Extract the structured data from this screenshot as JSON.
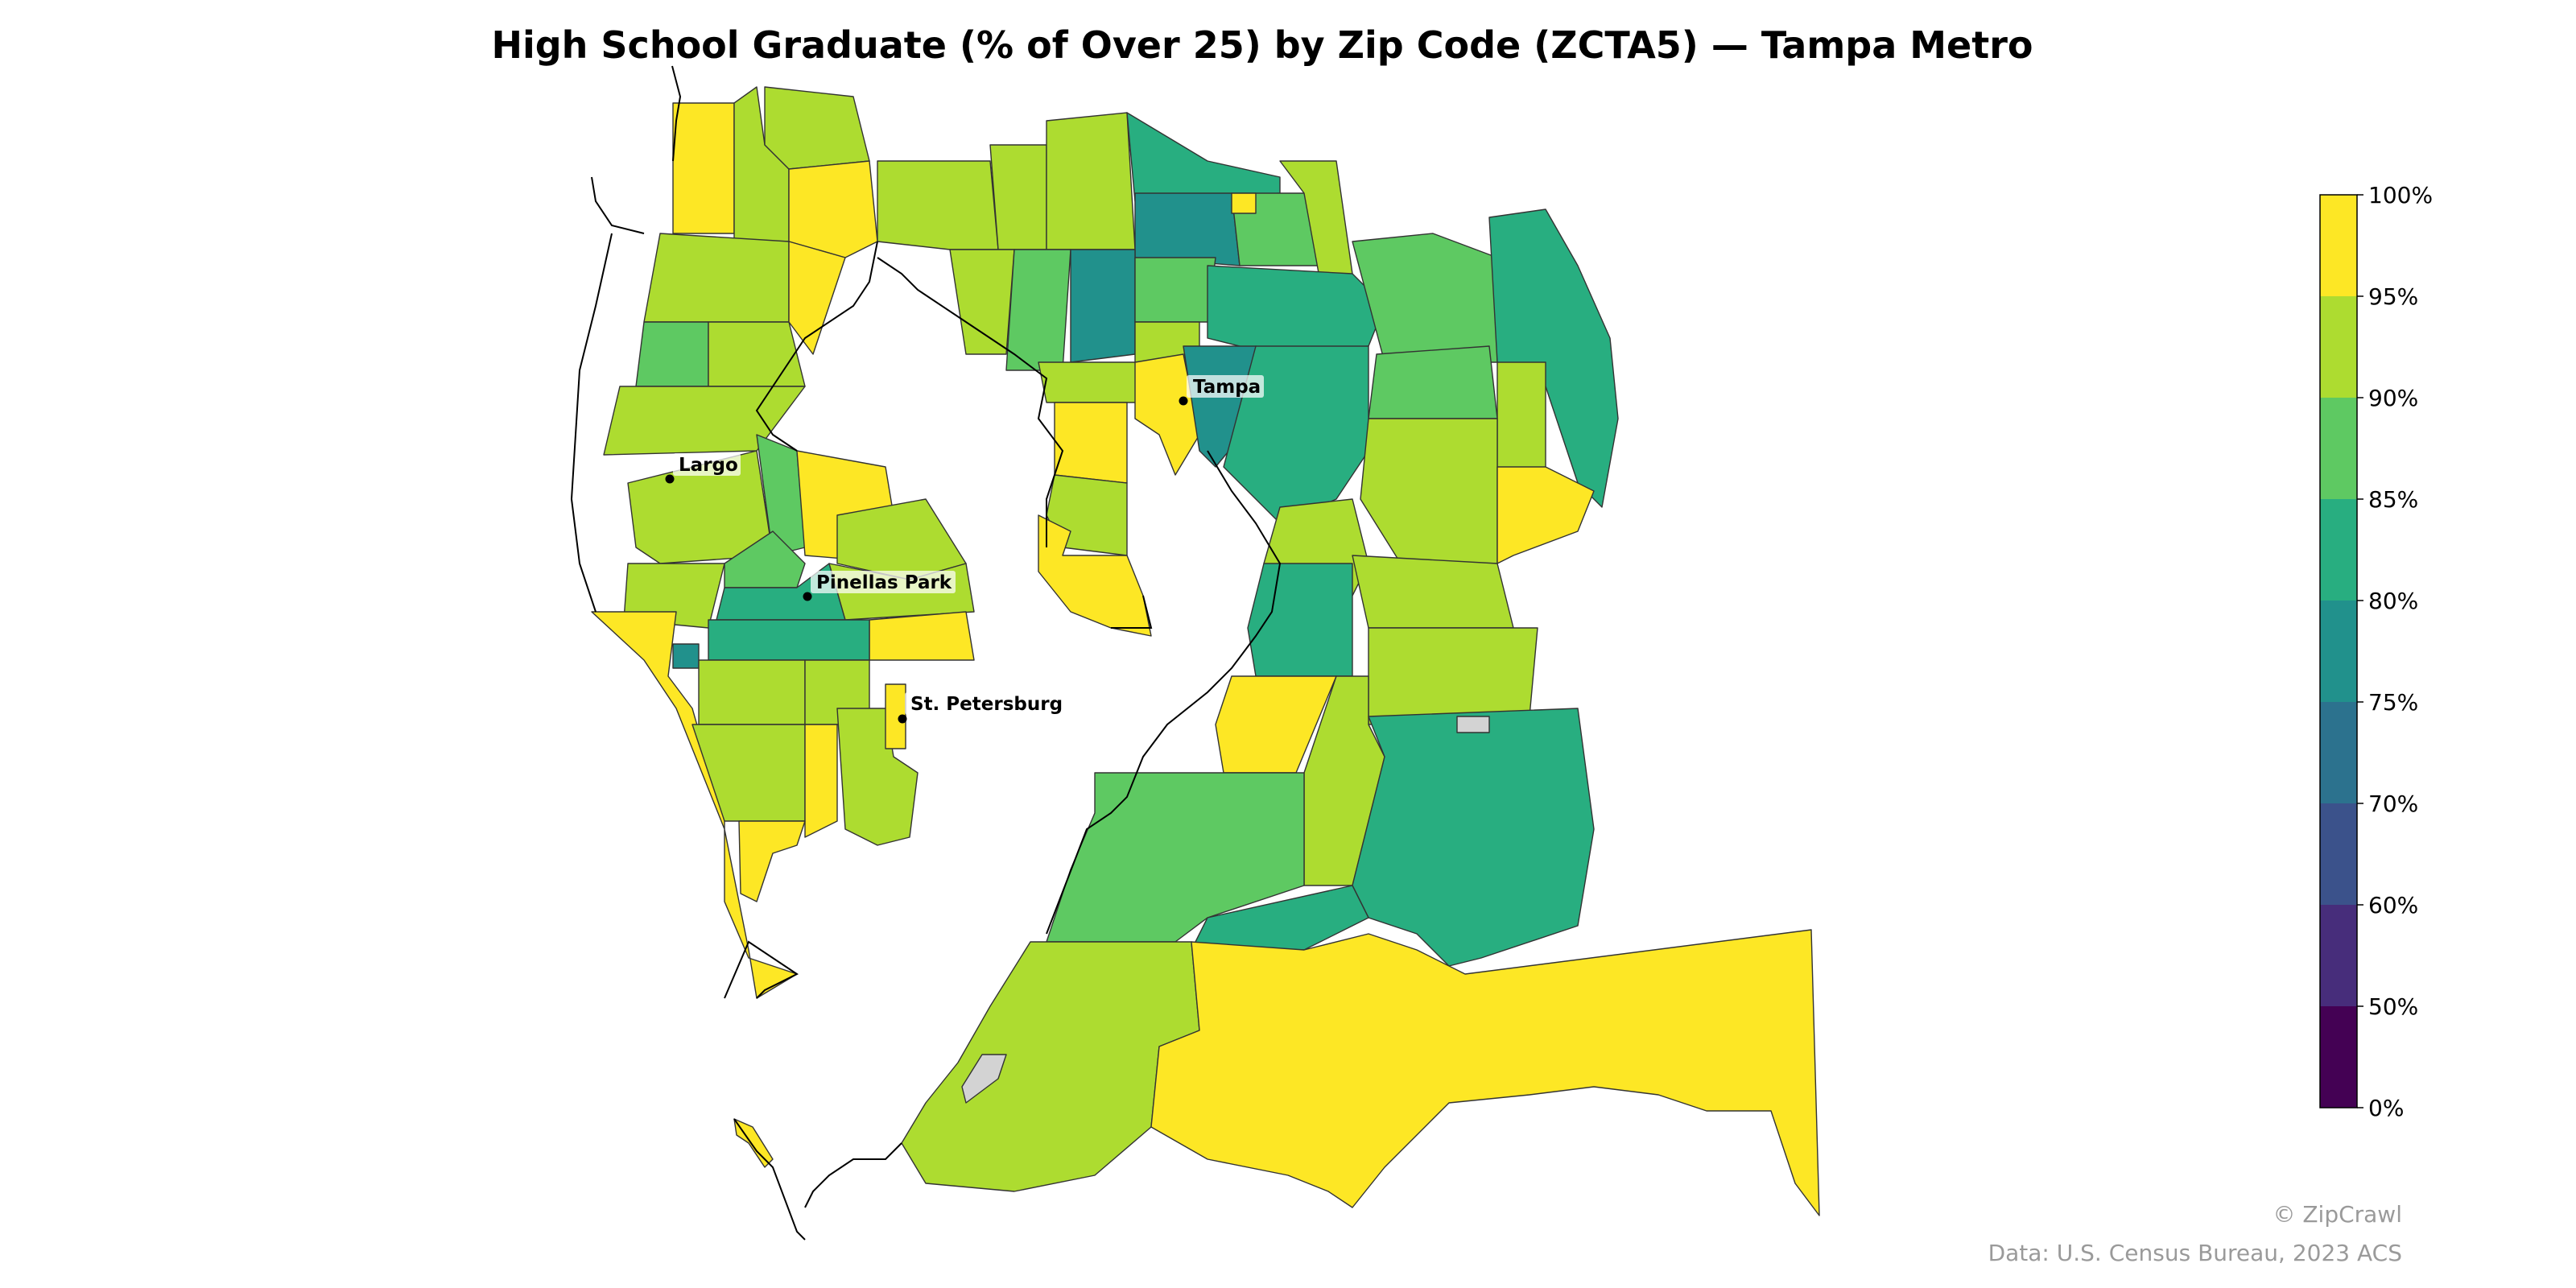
{
  "title": "High School Graduate (% of Over 25) by Zip Code (ZCTA5) — Tampa Metro",
  "cities": [
    {
      "name": "Tampa"
    },
    {
      "name": "Largo"
    },
    {
      "name": "Pinellas Park"
    },
    {
      "name": "St. Petersburg"
    }
  ],
  "legend": {
    "type": "stepped-colorbar",
    "placement": "right",
    "ticks": [
      "100%",
      "95%",
      "90%",
      "85%",
      "80%",
      "75%",
      "70%",
      "60%",
      "50%",
      "0%"
    ],
    "bins": [
      {
        "range": "95–100%",
        "color": "#fde725"
      },
      {
        "range": "90–95%",
        "color": "#addc30"
      },
      {
        "range": "85–90%",
        "color": "#5ec962"
      },
      {
        "range": "80–85%",
        "color": "#28ae80"
      },
      {
        "range": "75–80%",
        "color": "#21918c"
      },
      {
        "range": "70–75%",
        "color": "#2c728e"
      },
      {
        "range": "60–70%",
        "color": "#3b528b"
      },
      {
        "range": "50–60%",
        "color": "#472d7b"
      },
      {
        "range": "0–50%",
        "color": "#440154"
      }
    ],
    "no_data_color": "#d3d3d3"
  },
  "credits": {
    "brand": "© ZipCrawl",
    "source": "Data: U.S. Census Bureau, 2023 ACS"
  }
}
